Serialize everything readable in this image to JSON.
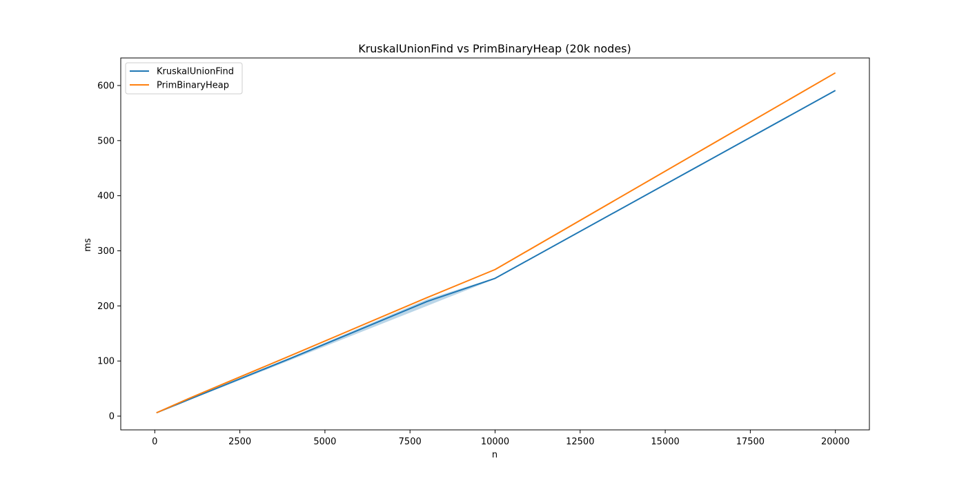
{
  "chart_data": {
    "type": "line",
    "title": "KruskalUnionFind vs PrimBinaryHeap (20k nodes)",
    "xlabel": "n",
    "ylabel": "ms",
    "xlim": [
      -1000,
      21000
    ],
    "ylim": [
      -25,
      650
    ],
    "xticks": [
      0,
      2500,
      5000,
      7500,
      10000,
      12500,
      15000,
      17500,
      20000
    ],
    "yticks": [
      0,
      100,
      200,
      300,
      400,
      500,
      600
    ],
    "grid": false,
    "legend": "top-left",
    "series": [
      {
        "name": "KruskalUnionFind",
        "color": "#1f77b4",
        "x": [
          50,
          1000,
          2000,
          4000,
          8000,
          10000,
          20000
        ],
        "y": [
          6,
          30,
          55,
          105,
          208,
          250,
          591
        ],
        "band_lower": [
          5,
          29,
          53,
          102,
          200,
          249,
          590
        ],
        "band_upper": [
          7,
          31,
          57,
          107,
          212,
          251,
          592
        ]
      },
      {
        "name": "PrimBinaryHeap",
        "color": "#ff7f0e",
        "x": [
          50,
          1000,
          2000,
          4000,
          8000,
          10000,
          20000
        ],
        "y": [
          6,
          32,
          58,
          110,
          215,
          266,
          623
        ]
      }
    ]
  }
}
